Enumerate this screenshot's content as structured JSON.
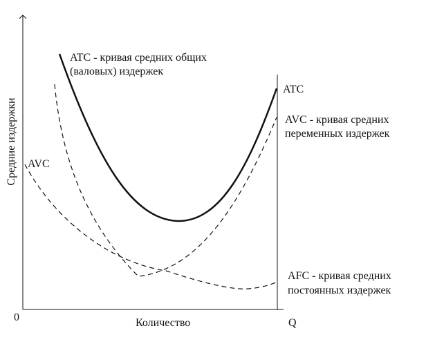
{
  "diagram": {
    "y_axis_label": "Средние издержки",
    "x_axis_label": "Количество",
    "origin_label": "0",
    "x_axis_end_label": "Q",
    "curves": [
      {
        "id": "atc",
        "style": "solid",
        "label_near": "ATC",
        "description": "ATC - кривая средних общих (валовых) издержек"
      },
      {
        "id": "avc",
        "style": "dashed",
        "label_near": "AVC",
        "description": "AVC - кривая средних переменных издержек"
      },
      {
        "id": "afc",
        "style": "dashed",
        "label_near": "",
        "description": "AFC - кривая средних постоянных издержек"
      }
    ],
    "annotations": {
      "atc_desc_line1": "ATC - кривая средних общих",
      "atc_desc_line2": "(валовых) издержек",
      "atc_right_label": "ATC",
      "avc_desc_line1": "AVC - кривая средних",
      "avc_desc_line2": "переменных издержек",
      "avc_left_label": "AVC",
      "afc_desc_line1": "AFC - кривая средних",
      "afc_desc_line2": "постоянных издержек"
    },
    "colors": {
      "line": "#111111",
      "background": "#ffffff"
    }
  }
}
